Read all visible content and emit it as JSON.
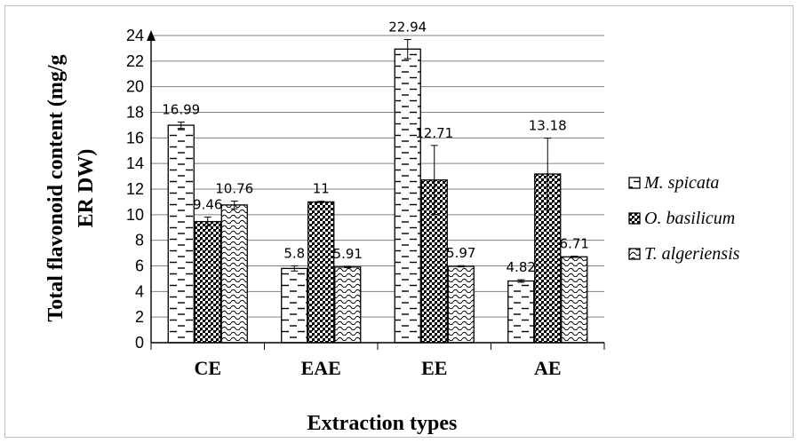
{
  "chart_data": {
    "type": "bar",
    "categories": [
      "CE",
      "EAE",
      "EE",
      "AE"
    ],
    "series": [
      {
        "name": "M. spicata",
        "pattern": "dash-horizontal",
        "values": [
          16.99,
          5.8,
          22.94,
          4.82
        ],
        "errors": [
          0.25,
          0.2,
          0.75,
          0.1
        ],
        "labels": [
          "16.99",
          "5.8",
          "22.94",
          "4.82"
        ]
      },
      {
        "name": "O. basilicum",
        "pattern": "dots-dense",
        "values": [
          9.46,
          11,
          12.71,
          13.18
        ],
        "errors": [
          0.35,
          0.05,
          2.7,
          2.8
        ],
        "labels": [
          "9.46",
          "11",
          "12.71",
          "13.18"
        ]
      },
      {
        "name": "T. algeriensis",
        "pattern": "waves",
        "values": [
          10.76,
          5.91,
          5.97,
          6.71
        ],
        "errors": [
          0.3,
          0.05,
          0.05,
          0.05
        ],
        "labels": [
          "10.76",
          "5.91",
          "5.97",
          "6.71"
        ]
      }
    ],
    "xlabel": "Extraction types",
    "ylabel": "Total flavonoid content (mg/g ER DW)",
    "ylim": [
      0,
      24
    ],
    "yticks": [
      "0",
      "2",
      "4",
      "6",
      "8",
      "10",
      "12",
      "14",
      "16",
      "18",
      "20",
      "22",
      "24"
    ],
    "grid": true,
    "legend_position": "right",
    "colors": {
      "bar_fill": "#ffffff",
      "bar_stroke": "#000000",
      "gridline": "#808080"
    }
  }
}
